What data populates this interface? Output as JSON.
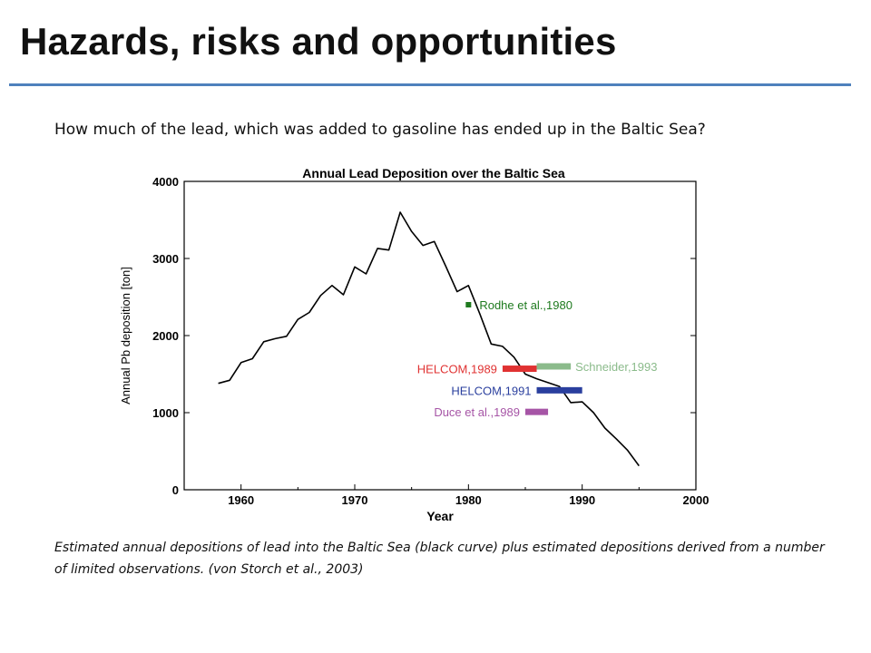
{
  "slide": {
    "title": "Hazards, risks and opportunities",
    "question": "How much of the lead, which was added to gasoline has ended up in the Baltic Sea?",
    "caption": "Estimated annual depositions of lead into the Baltic Sea (black curve) plus estimated depositions derived from a number of limited observations. (von Storch et al., 2003)",
    "accent_color": "#4f81bd"
  },
  "chart_data": {
    "type": "line",
    "title": "Annual Lead Deposition over the Baltic Sea",
    "xlabel": "Year",
    "ylabel": "Annual Pb deposition [ton]",
    "xlim": [
      1955,
      2000
    ],
    "ylim": [
      0,
      4000
    ],
    "xticks": [
      1960,
      1970,
      1980,
      1990,
      2000
    ],
    "yticks": [
      0,
      1000,
      2000,
      3000,
      4000
    ],
    "grid": false,
    "series": [
      {
        "color": "#000000",
        "x": [
          1958,
          1959,
          1960,
          1961,
          1962,
          1963,
          1964,
          1965,
          1966,
          1967,
          1968,
          1969,
          1970,
          1971,
          1972,
          1973,
          1974,
          1975,
          1976,
          1977,
          1978,
          1979,
          1980,
          1981,
          1982,
          1983,
          1984,
          1985,
          1986,
          1987,
          1988,
          1989,
          1990,
          1991,
          1992,
          1993,
          1994,
          1995
        ],
        "y": [
          1380,
          1420,
          1650,
          1700,
          1920,
          1960,
          1990,
          2210,
          2300,
          2520,
          2650,
          2530,
          2890,
          2800,
          3130,
          3110,
          3600,
          3350,
          3170,
          3220,
          2900,
          2570,
          2650,
          2280,
          1890,
          1860,
          1720,
          1500,
          1440,
          1390,
          1340,
          1130,
          1140,
          1000,
          800,
          660,
          510,
          310
        ]
      }
    ],
    "estimates": [
      {
        "label": "Rodhe et al.,1980",
        "kind": "point",
        "x": 1980,
        "y": 2400,
        "color": "#1e7a1e"
      },
      {
        "label": "HELCOM,1989",
        "kind": "range",
        "x_start": 1983,
        "x_end": 1986,
        "y": 1570,
        "color": "#e03232",
        "label_side": "left"
      },
      {
        "label": "Schneider,1993",
        "kind": "range",
        "x_start": 1986,
        "x_end": 1989,
        "y": 1600,
        "color": "#8bbb8b",
        "label_side": "right"
      },
      {
        "label": "HELCOM,1991",
        "kind": "range",
        "x_start": 1986,
        "x_end": 1990,
        "y": 1290,
        "color": "#2a3f9e",
        "label_side": "left"
      },
      {
        "label": "Duce et al.,1989",
        "kind": "range",
        "x_start": 1985,
        "x_end": 1987,
        "y": 1010,
        "color": "#a655a6",
        "label_side": "left"
      }
    ]
  }
}
